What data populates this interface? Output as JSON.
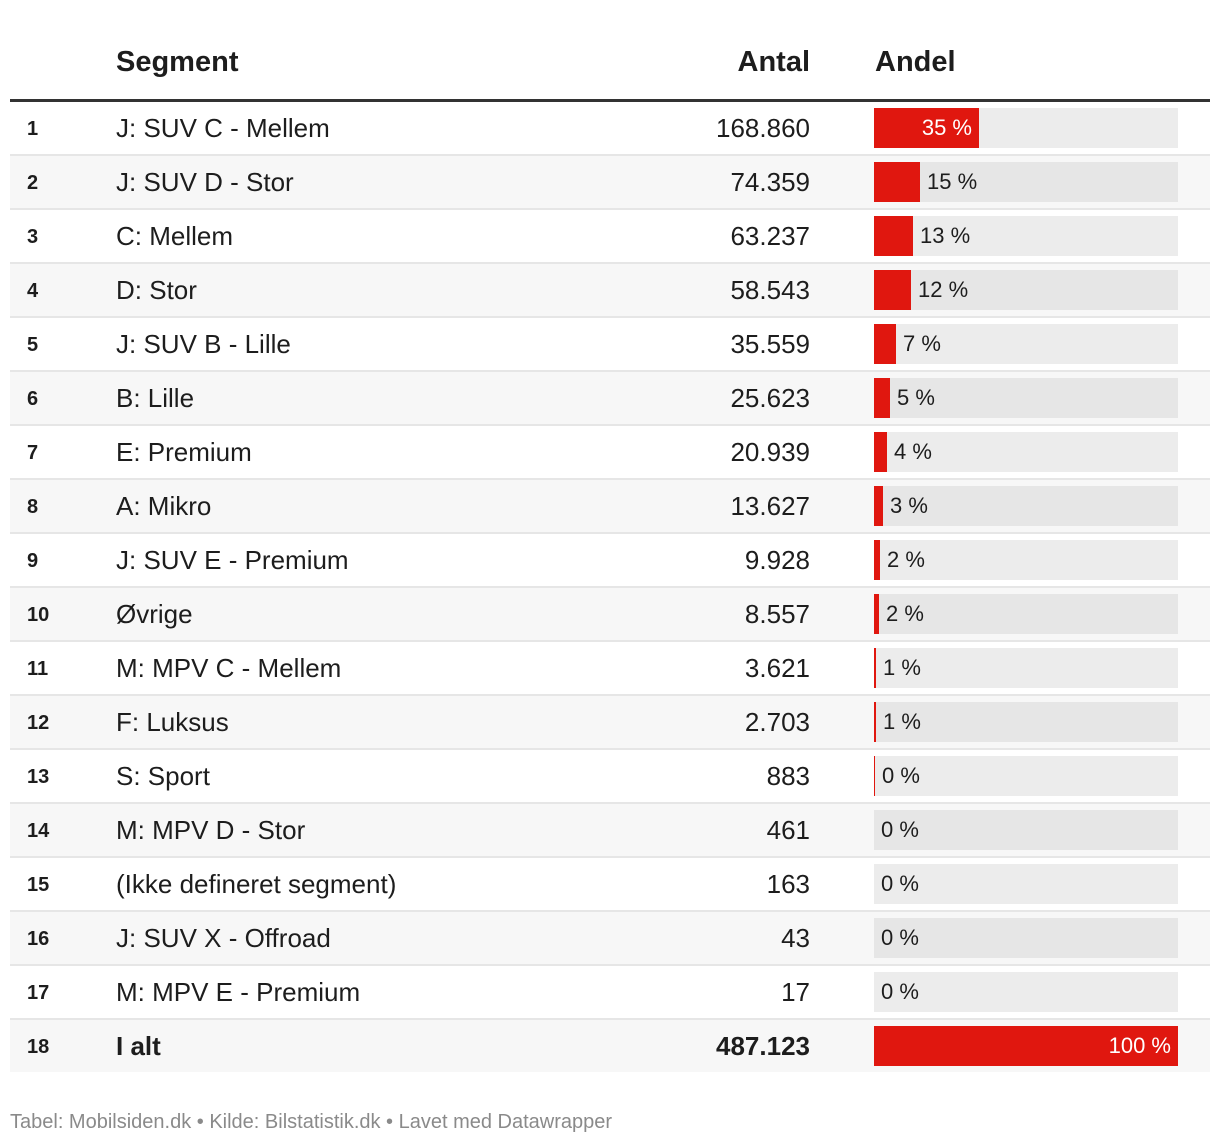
{
  "header": {
    "segment": "Segment",
    "antal": "Antal",
    "andel": "Andel"
  },
  "colors": {
    "bar": "#e0170f",
    "track": "#ececec"
  },
  "chart_data": {
    "type": "table",
    "columns": [
      "",
      "Segment",
      "Antal",
      "Andel"
    ],
    "rows": [
      {
        "rank": "1",
        "segment": "J: SUV C - Mellem",
        "antal": "168.860",
        "value": 168860,
        "andel": "35 %"
      },
      {
        "rank": "2",
        "segment": "J: SUV D - Stor",
        "antal": "74.359",
        "value": 74359,
        "andel": "15 %"
      },
      {
        "rank": "3",
        "segment": "C: Mellem",
        "antal": "63.237",
        "value": 63237,
        "andel": "13 %"
      },
      {
        "rank": "4",
        "segment": "D: Stor",
        "antal": "58.543",
        "value": 58543,
        "andel": "12 %"
      },
      {
        "rank": "5",
        "segment": "J: SUV B - Lille",
        "antal": "35.559",
        "value": 35559,
        "andel": "7 %"
      },
      {
        "rank": "6",
        "segment": "B: Lille",
        "antal": "25.623",
        "value": 25623,
        "andel": "5 %"
      },
      {
        "rank": "7",
        "segment": "E: Premium",
        "antal": "20.939",
        "value": 20939,
        "andel": "4 %"
      },
      {
        "rank": "8",
        "segment": "A: Mikro",
        "antal": "13.627",
        "value": 13627,
        "andel": "3 %"
      },
      {
        "rank": "9",
        "segment": "J: SUV E - Premium",
        "antal": "9.928",
        "value": 9928,
        "andel": "2 %"
      },
      {
        "rank": "10",
        "segment": "Øvrige",
        "antal": "8.557",
        "value": 8557,
        "andel": "2 %"
      },
      {
        "rank": "11",
        "segment": "M: MPV C - Mellem",
        "antal": "3.621",
        "value": 3621,
        "andel": "1 %"
      },
      {
        "rank": "12",
        "segment": "F: Luksus",
        "antal": "2.703",
        "value": 2703,
        "andel": "1 %"
      },
      {
        "rank": "13",
        "segment": "S: Sport",
        "antal": "883",
        "value": 883,
        "andel": "0 %"
      },
      {
        "rank": "14",
        "segment": "M: MPV D - Stor",
        "antal": "461",
        "value": 461,
        "andel": "0 %"
      },
      {
        "rank": "15",
        "segment": "(Ikke defineret segment)",
        "antal": "163",
        "value": 163,
        "andel": "0 %"
      },
      {
        "rank": "16",
        "segment": "J: SUV X - Offroad",
        "antal": "43",
        "value": 43,
        "andel": "0 %"
      },
      {
        "rank": "17",
        "segment": "M: MPV E - Premium",
        "antal": "17",
        "value": 17,
        "andel": "0 %"
      },
      {
        "rank": "18",
        "segment": "I alt",
        "antal": "487.123",
        "value": 487123,
        "andel": "100 %",
        "total": true
      }
    ]
  },
  "footer": "Tabel: Mobilsiden.dk • Kilde: Bilstatistik.dk • Lavet med Datawrapper"
}
